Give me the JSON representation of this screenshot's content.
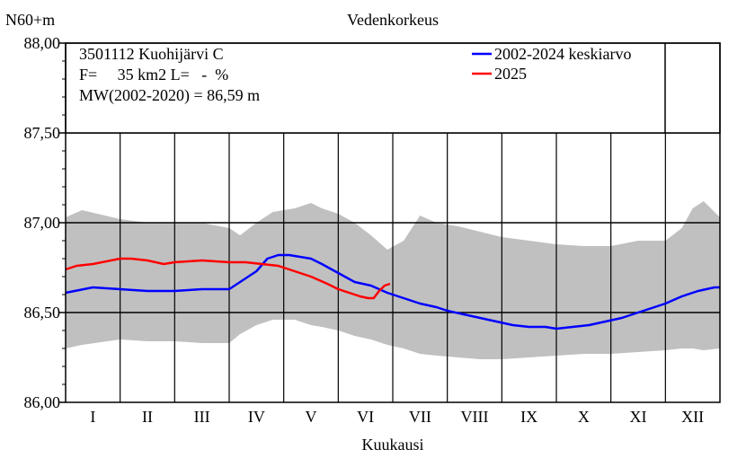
{
  "chart_data": {
    "type": "line",
    "title": "Vedenkorkeus",
    "ylabel": "N60+m",
    "xlabel": "Kuukausi",
    "ylim": [
      86.0,
      88.0
    ],
    "yticks": [
      86.0,
      86.5,
      87.0,
      87.5,
      88.0
    ],
    "ytick_labels": [
      "86,00",
      "86,50",
      "87,00",
      "87,50",
      "88,00"
    ],
    "xlim": [
      0,
      12
    ],
    "categories": [
      "I",
      "II",
      "III",
      "IV",
      "V",
      "VI",
      "VII",
      "VIII",
      "IX",
      "X",
      "XI",
      "XII"
    ],
    "grid": true,
    "legend_position": "top-right",
    "info_lines": [
      "3501112 Kuohijärvi C",
      "F=     35 km2 L=   -  %",
      "MW(2002-2020) = 86,59 m"
    ],
    "band": {
      "x": [
        0,
        0.3,
        1.0,
        1.5,
        2.0,
        2.5,
        3.0,
        3.2,
        3.5,
        3.8,
        4.2,
        4.5,
        4.7,
        5.0,
        5.3,
        5.6,
        5.9,
        6.2,
        6.5,
        6.8,
        7.2,
        7.6,
        8.0,
        8.5,
        9.0,
        9.5,
        10.0,
        10.5,
        11.0,
        11.3,
        11.5,
        11.7,
        12.0
      ],
      "upper": [
        87.03,
        87.07,
        87.02,
        87.0,
        87.0,
        87.0,
        86.97,
        86.93,
        87.0,
        87.06,
        87.08,
        87.11,
        87.08,
        87.05,
        87.0,
        86.93,
        86.85,
        86.9,
        87.04,
        87.0,
        86.98,
        86.95,
        86.92,
        86.9,
        86.88,
        86.87,
        86.87,
        86.9,
        86.9,
        86.97,
        87.08,
        87.12,
        87.03
      ],
      "lower": [
        86.3,
        86.32,
        86.35,
        86.34,
        86.34,
        86.33,
        86.33,
        86.38,
        86.43,
        86.46,
        86.46,
        86.43,
        86.42,
        86.4,
        86.37,
        86.35,
        86.32,
        86.3,
        86.27,
        86.26,
        86.25,
        86.24,
        86.24,
        86.25,
        86.26,
        86.27,
        86.27,
        86.28,
        86.29,
        86.3,
        86.3,
        86.29,
        86.3
      ]
    },
    "series": [
      {
        "name": "2002-2024 keskiarvo",
        "color": "#0000ff",
        "x": [
          0,
          0.5,
          1.0,
          1.5,
          2.0,
          2.5,
          3.0,
          3.2,
          3.5,
          3.7,
          3.9,
          4.1,
          4.3,
          4.5,
          4.7,
          5.0,
          5.3,
          5.6,
          5.9,
          6.2,
          6.5,
          6.8,
          7.0,
          7.3,
          7.6,
          7.9,
          8.2,
          8.5,
          8.8,
          9.0,
          9.3,
          9.6,
          9.9,
          10.2,
          10.5,
          10.8,
          11.0,
          11.3,
          11.6,
          11.9,
          12.0
        ],
        "y": [
          86.61,
          86.64,
          86.63,
          86.62,
          86.62,
          86.63,
          86.63,
          86.67,
          86.73,
          86.8,
          86.82,
          86.82,
          86.81,
          86.8,
          86.77,
          86.72,
          86.67,
          86.65,
          86.61,
          86.58,
          86.55,
          86.53,
          86.51,
          86.49,
          86.47,
          86.45,
          86.43,
          86.42,
          86.42,
          86.41,
          86.42,
          86.43,
          86.45,
          86.47,
          86.5,
          86.53,
          86.55,
          86.59,
          86.62,
          86.64,
          86.64
        ]
      },
      {
        "name": "2025",
        "color": "#ff0000",
        "x": [
          0,
          0.2,
          0.5,
          1.0,
          1.2,
          1.5,
          1.8,
          2.0,
          2.5,
          3.0,
          3.3,
          3.6,
          3.9,
          4.2,
          4.5,
          4.8,
          5.0,
          5.2,
          5.4,
          5.55,
          5.65,
          5.75,
          5.85,
          5.95
        ],
        "y": [
          86.74,
          86.76,
          86.77,
          86.8,
          86.8,
          86.79,
          86.77,
          86.78,
          86.79,
          86.78,
          86.78,
          86.77,
          86.76,
          86.73,
          86.7,
          86.66,
          86.63,
          86.61,
          86.59,
          86.58,
          86.58,
          86.62,
          86.65,
          86.66
        ]
      }
    ]
  }
}
